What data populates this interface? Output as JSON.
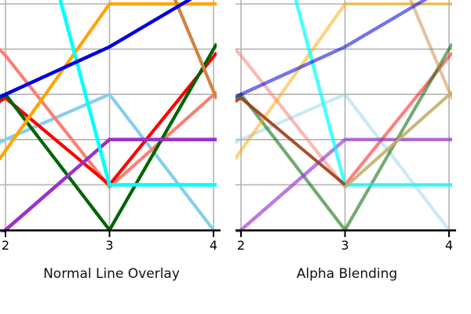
{
  "figure": {
    "background": "#ffffff"
  },
  "panels": [
    {
      "title": "Normal Line Overlay",
      "mode": "normal",
      "x_ticks": [
        "2",
        "3",
        "4"
      ]
    },
    {
      "title": "Alpha Blending",
      "mode": "alpha",
      "x_ticks": [
        "2",
        "3",
        "4"
      ]
    }
  ],
  "chart_data": {
    "type": "line",
    "title": "",
    "xlabel": "",
    "ylabel": "",
    "x_tick_values": [
      2,
      3,
      4
    ],
    "x_range": [
      1.94,
      4.03
    ],
    "y_range": [
      0,
      5.12
    ],
    "y_gridline_values": [
      1,
      2,
      3,
      4,
      5
    ],
    "grid": true,
    "legend": false,
    "note": "Two subplots of the same ten overlapping line series; left drawn opaque, right drawn with alpha transparency. Figure is cropped at top and left (no y tick labels visible).",
    "colors": {
      "grid": "#b3b3b3",
      "axis": "#000000",
      "text": "#111111"
    },
    "series": [
      {
        "name": "olive",
        "color": "#BDB76B",
        "alpha": 0.85,
        "alpha_front": true,
        "width": 3.6,
        "points": [
          [
            3,
            0.95
          ],
          [
            4.03,
            3.05
          ]
        ]
      },
      {
        "name": "brown",
        "color": "#8B4513",
        "alpha": 0.8,
        "alpha_front": true,
        "width": 3.6,
        "points": [
          [
            1.94,
            2.84
          ],
          [
            2,
            2.92
          ],
          [
            3,
            1.0
          ]
        ]
      },
      {
        "name": "skyblue",
        "color": "#87CEEB",
        "alpha": 0.45,
        "alpha_front": false,
        "width": 4.2,
        "points": [
          [
            1.94,
            1.93
          ],
          [
            2,
            2.0
          ],
          [
            3,
            3.0
          ],
          [
            4,
            0.0
          ]
        ]
      },
      {
        "name": "salmon",
        "color": "#FA8072",
        "alpha": 0.55,
        "alpha_front": false,
        "width": 4.2,
        "points": [
          [
            1.94,
            4.0
          ],
          [
            2,
            3.86
          ],
          [
            3,
            0.95
          ],
          [
            4.03,
            3.05
          ]
        ]
      },
      {
        "name": "red",
        "color": "#FF0000",
        "alpha": 0.5,
        "alpha_front": false,
        "width": 4.2,
        "points": [
          [
            1.94,
            2.84
          ],
          [
            2,
            2.92
          ],
          [
            3,
            1.0
          ],
          [
            4.03,
            3.92
          ]
        ]
      },
      {
        "name": "darkgreen",
        "color": "#006400",
        "alpha": 0.55,
        "alpha_front": false,
        "width": 4.2,
        "points": [
          [
            1.94,
            2.9
          ],
          [
            2,
            3.0
          ],
          [
            3,
            0.0
          ],
          [
            4.03,
            4.12
          ]
        ]
      },
      {
        "name": "purple",
        "color": "#9932CC",
        "alpha": 0.65,
        "alpha_front": false,
        "width": 4.5,
        "points": [
          [
            1.94,
            -0.12
          ],
          [
            2,
            0.0
          ],
          [
            3,
            2.0
          ],
          [
            4.03,
            2.0
          ]
        ]
      },
      {
        "name": "orange",
        "color": "#FFA500",
        "alpha": 0.5,
        "alpha_front": false,
        "width": 4.2,
        "points": [
          [
            1.94,
            1.56
          ],
          [
            3,
            5.0
          ],
          [
            4.03,
            5.0
          ]
        ]
      },
      {
        "name": "tan",
        "color": "#CD853F",
        "alpha": 0.5,
        "alpha_front": false,
        "width": 4.2,
        "points": [
          [
            3.62,
            5.15
          ],
          [
            4.03,
            2.9
          ]
        ]
      },
      {
        "name": "cyan",
        "color": "#00FFFF",
        "alpha": 0.7,
        "alpha_front": false,
        "width": 4.6,
        "points": [
          [
            2.52,
            5.15
          ],
          [
            3,
            1.0
          ],
          [
            4.03,
            1.0
          ]
        ]
      },
      {
        "name": "blue",
        "color": "#0000DD",
        "alpha": 0.55,
        "alpha_front": false,
        "width": 4.4,
        "points": [
          [
            1.94,
            2.94
          ],
          [
            2,
            3.0
          ],
          [
            3,
            4.05
          ],
          [
            4.03,
            5.45
          ]
        ]
      }
    ]
  }
}
